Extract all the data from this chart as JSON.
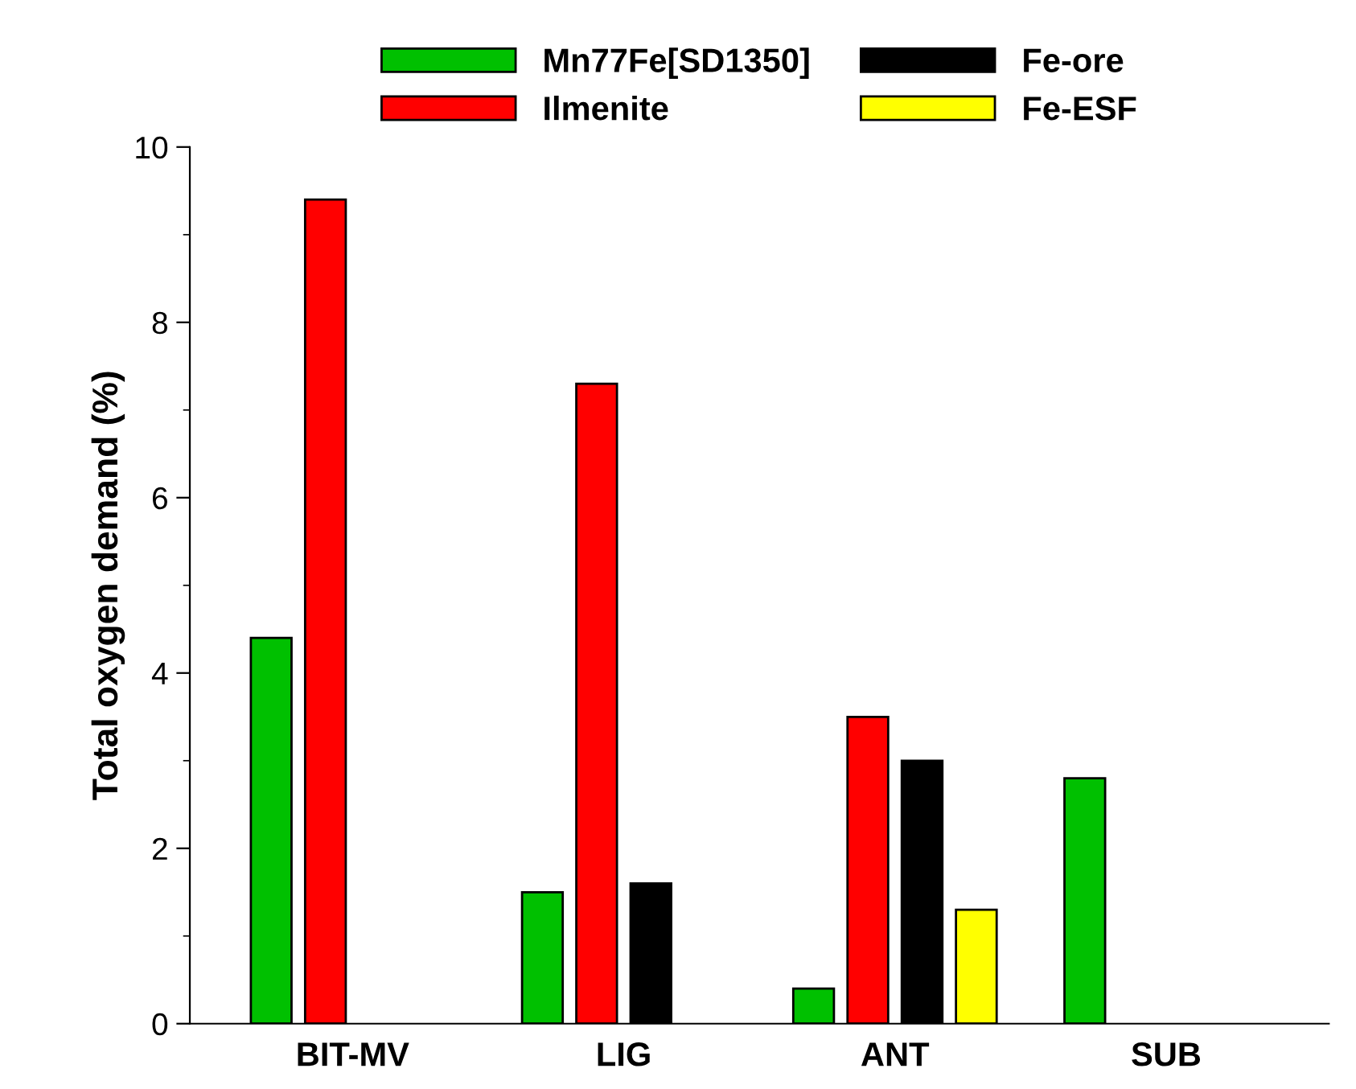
{
  "chart_data": {
    "type": "bar",
    "ylabel": "Total oxygen demand (%)",
    "categories": [
      "BIT-MV",
      "LIG",
      "ANT",
      "SUB"
    ],
    "series": [
      {
        "name": "Mn77Fe[SD1350]",
        "color": "#00c000",
        "values": [
          4.4,
          1.5,
          0.4,
          2.8
        ]
      },
      {
        "name": "Ilmenite",
        "color": "#ff0000",
        "values": [
          9.4,
          7.3,
          3.5,
          null
        ]
      },
      {
        "name": "Fe-ore",
        "color": "#000000",
        "values": [
          null,
          1.6,
          3.0,
          null
        ]
      },
      {
        "name": "Fe-ESF",
        "color": "#ffff00",
        "values": [
          null,
          null,
          1.3,
          null
        ]
      }
    ],
    "ylim": [
      0,
      10
    ],
    "yticks": [
      0,
      2,
      4,
      6,
      8,
      10
    ],
    "grid": false,
    "legend": "top"
  }
}
